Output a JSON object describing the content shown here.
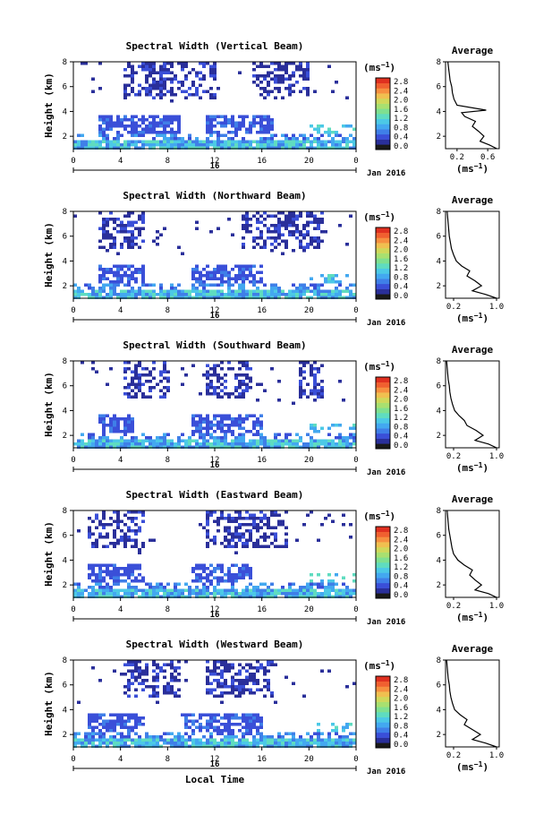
{
  "figure": {
    "xaxis_label": "Local Time",
    "date_day": "16",
    "date_month_year": "Jan 2016",
    "colorbar_unit_base": "(ms",
    "colorbar_unit_exp": "−1",
    "colorbar_unit_close": ")"
  },
  "colors": {
    "scale": [
      "#1a1a1a",
      "#2a2f9a",
      "#3a4fd8",
      "#3f7fe8",
      "#43a8f0",
      "#4cc9e6",
      "#5fdcc0",
      "#7fe090",
      "#a8e070",
      "#d0d85a",
      "#f0c050",
      "#f69040",
      "#f06030",
      "#e03020"
    ]
  },
  "chart_data": [
    {
      "type": "heatmap",
      "title": "Spectral Width (Vertical Beam)",
      "ylabel": "Height (km)",
      "xlabel": "",
      "xlim": [
        0,
        24
      ],
      "ylim": [
        1,
        8
      ],
      "xticks": [
        "0",
        "4",
        "8",
        "12",
        "16",
        "20",
        "0"
      ],
      "yticks": [
        "2",
        "4",
        "6",
        "8"
      ],
      "colorbar": {
        "range": [
          0,
          2.8
        ],
        "ticks": [
          "2.8",
          "2.4",
          "2.0",
          "1.6",
          "1.2",
          "0.8",
          "0.4",
          "0.0"
        ]
      },
      "features": {
        "upper": [
          [
            4,
            12
          ],
          [
            15,
            20
          ]
        ],
        "mid": [
          [
            2,
            9
          ],
          [
            11,
            17
          ]
        ],
        "low": [
          [
            0,
            24
          ]
        ]
      },
      "profile": {
        "title": "Average",
        "xticks": [
          "0.2",
          "0.6"
        ],
        "xlim": [
          0.05,
          0.75
        ],
        "yticks": [
          "2",
          "4",
          "6",
          "8"
        ],
        "xlabel_base": "(ms",
        "xlabel_exp": "−1",
        "xlabel_close": ")",
        "heights": [
          1.0,
          1.3,
          1.6,
          2.0,
          2.4,
          2.8,
          3.2,
          3.6,
          3.9,
          4.1,
          4.5,
          5.0,
          5.5,
          6.0,
          6.5,
          7.0,
          7.5,
          8.0
        ],
        "values": [
          0.72,
          0.62,
          0.5,
          0.55,
          0.48,
          0.4,
          0.44,
          0.3,
          0.26,
          0.58,
          0.2,
          0.16,
          0.14,
          0.13,
          0.11,
          0.1,
          0.09,
          0.08
        ]
      }
    },
    {
      "type": "heatmap",
      "title": "Spectral Width (Northward Beam)",
      "ylabel": "Height (km)",
      "xlabel": "",
      "xlim": [
        0,
        24
      ],
      "ylim": [
        1,
        8
      ],
      "xticks": [
        "0",
        "4",
        "8",
        "12",
        "16",
        "20",
        "0"
      ],
      "yticks": [
        "2",
        "4",
        "6",
        "8"
      ],
      "colorbar": {
        "range": [
          0,
          2.8
        ],
        "ticks": [
          "2.8",
          "2.4",
          "2.0",
          "1.6",
          "1.2",
          "0.8",
          "0.4",
          "0.0"
        ]
      },
      "features": {
        "upper": [
          [
            2,
            6
          ],
          [
            14,
            21
          ]
        ],
        "mid": [
          [
            2,
            6
          ],
          [
            10,
            16
          ]
        ],
        "low": [
          [
            0,
            24
          ]
        ]
      },
      "profile": {
        "title": "Average",
        "xticks": [
          "0.2",
          "1.0"
        ],
        "xlim": [
          0.05,
          1.05
        ],
        "yticks": [
          "2",
          "4",
          "6",
          "8"
        ],
        "xlabel_base": "(ms",
        "xlabel_exp": "−1",
        "xlabel_close": ")",
        "heights": [
          1.0,
          1.3,
          1.6,
          2.0,
          2.4,
          2.8,
          3.2,
          3.6,
          4.0,
          4.5,
          5.0,
          5.5,
          6.0,
          6.5,
          7.0,
          7.5,
          8.0
        ],
        "values": [
          1.0,
          0.8,
          0.55,
          0.72,
          0.6,
          0.45,
          0.5,
          0.35,
          0.25,
          0.2,
          0.16,
          0.14,
          0.12,
          0.11,
          0.1,
          0.09,
          0.08
        ]
      }
    },
    {
      "type": "heatmap",
      "title": "Spectral Width (Southward Beam)",
      "ylabel": "Height (km)",
      "xlabel": "",
      "xlim": [
        0,
        24
      ],
      "ylim": [
        1,
        8
      ],
      "xticks": [
        "0",
        "4",
        "8",
        "12",
        "16",
        "20",
        "0"
      ],
      "yticks": [
        "2",
        "4",
        "6",
        "8"
      ],
      "colorbar": {
        "range": [
          0,
          2.8
        ],
        "ticks": [
          "2.8",
          "2.4",
          "2.0",
          "1.6",
          "1.2",
          "0.8",
          "0.4",
          "0.0"
        ]
      },
      "features": {
        "upper": [
          [
            4,
            8
          ],
          [
            11,
            15
          ],
          [
            19,
            21
          ]
        ],
        "mid": [
          [
            2,
            5
          ],
          [
            10,
            16
          ]
        ],
        "low": [
          [
            0,
            24
          ]
        ]
      },
      "profile": {
        "title": "Average",
        "xticks": [
          "0.2",
          "1.0"
        ],
        "xlim": [
          0.05,
          1.05
        ],
        "yticks": [
          "2",
          "4",
          "6",
          "8"
        ],
        "xlabel_base": "(ms",
        "xlabel_exp": "−1",
        "xlabel_close": ")",
        "heights": [
          1.0,
          1.3,
          1.6,
          2.0,
          2.4,
          2.8,
          3.2,
          3.6,
          4.0,
          4.5,
          5.0,
          5.5,
          6.0,
          6.5,
          7.0,
          7.5,
          8.0
        ],
        "values": [
          1.0,
          0.85,
          0.6,
          0.75,
          0.62,
          0.45,
          0.4,
          0.3,
          0.22,
          0.18,
          0.15,
          0.13,
          0.12,
          0.1,
          0.09,
          0.08,
          0.07
        ]
      }
    },
    {
      "type": "heatmap",
      "title": "Spectral Width (Eastward Beam)",
      "ylabel": "Height (km)",
      "xlabel": "",
      "xlim": [
        0,
        24
      ],
      "ylim": [
        1,
        8
      ],
      "xticks": [
        "0",
        "4",
        "8",
        "12",
        "16",
        "20",
        "0"
      ],
      "yticks": [
        "2",
        "4",
        "6",
        "8"
      ],
      "colorbar": {
        "range": [
          0,
          2.8
        ],
        "ticks": [
          "2.8",
          "2.4",
          "2.0",
          "1.6",
          "1.2",
          "0.8",
          "0.4",
          "0.0"
        ]
      },
      "features": {
        "upper": [
          [
            1,
            6
          ],
          [
            11,
            18
          ]
        ],
        "mid": [
          [
            1,
            6
          ],
          [
            10,
            15
          ]
        ],
        "low": [
          [
            0,
            24
          ]
        ]
      },
      "profile": {
        "title": "Average",
        "xticks": [
          "0.2",
          "1.0"
        ],
        "xlim": [
          0.05,
          1.05
        ],
        "yticks": [
          "2",
          "4",
          "6",
          "8"
        ],
        "xlabel_base": "(ms",
        "xlabel_exp": "−1",
        "xlabel_close": ")",
        "heights": [
          1.0,
          1.3,
          1.6,
          2.0,
          2.4,
          2.8,
          3.2,
          3.6,
          4.0,
          4.5,
          5.0,
          5.5,
          6.0,
          6.5,
          7.0,
          7.5,
          8.0
        ],
        "values": [
          1.0,
          0.85,
          0.6,
          0.72,
          0.6,
          0.5,
          0.55,
          0.4,
          0.28,
          0.2,
          0.17,
          0.15,
          0.13,
          0.11,
          0.1,
          0.09,
          0.08
        ]
      }
    },
    {
      "type": "heatmap",
      "title": "Spectral Width (Westward Beam)",
      "ylabel": "Height (km)",
      "xlabel": "Local Time",
      "xlim": [
        0,
        24
      ],
      "ylim": [
        1,
        8
      ],
      "xticks": [
        "0",
        "4",
        "8",
        "12",
        "16",
        "20",
        "0"
      ],
      "yticks": [
        "2",
        "4",
        "6",
        "8"
      ],
      "colorbar": {
        "range": [
          0,
          2.8
        ],
        "ticks": [
          "2.8",
          "2.4",
          "2.0",
          "1.6",
          "1.2",
          "0.8",
          "0.4",
          "0.0"
        ]
      },
      "features": {
        "upper": [
          [
            4,
            9
          ],
          [
            11,
            17
          ]
        ],
        "mid": [
          [
            1,
            6
          ],
          [
            9,
            16
          ]
        ],
        "low": [
          [
            0,
            24
          ]
        ]
      },
      "profile": {
        "title": "Average",
        "xticks": [
          "0.2",
          "1.0"
        ],
        "xlim": [
          0.05,
          1.05
        ],
        "yticks": [
          "2",
          "4",
          "6",
          "8"
        ],
        "xlabel_base": "(ms",
        "xlabel_exp": "−1",
        "xlabel_close": ")",
        "heights": [
          1.0,
          1.3,
          1.6,
          2.0,
          2.4,
          2.8,
          3.2,
          3.6,
          4.0,
          4.5,
          5.0,
          5.5,
          6.0,
          6.5,
          7.0,
          7.5,
          8.0
        ],
        "values": [
          1.0,
          0.8,
          0.55,
          0.7,
          0.55,
          0.4,
          0.45,
          0.32,
          0.22,
          0.18,
          0.15,
          0.13,
          0.12,
          0.1,
          0.09,
          0.08,
          0.07
        ]
      }
    }
  ]
}
